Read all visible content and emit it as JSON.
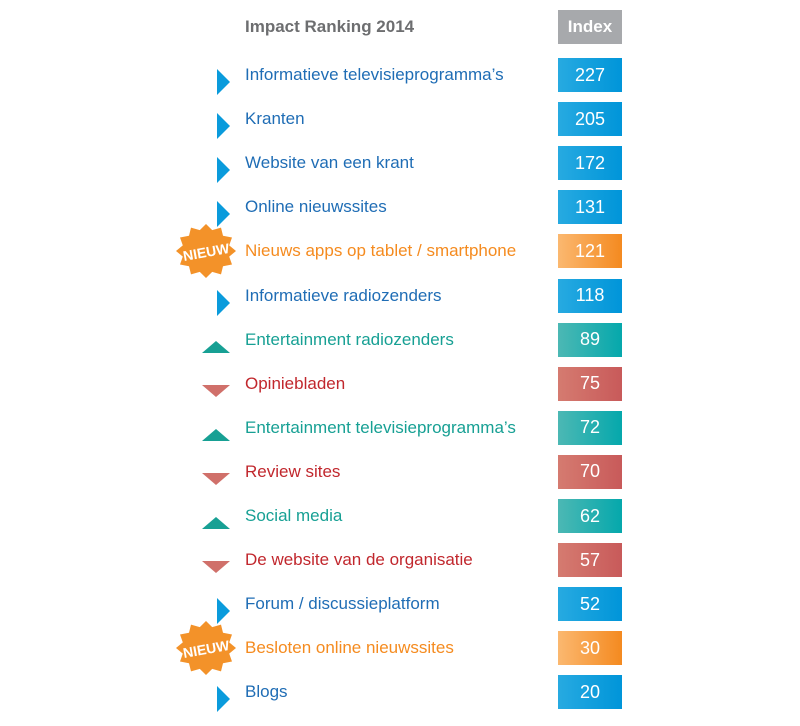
{
  "chart_data": {
    "type": "table",
    "title": "Impact Ranking 2014",
    "value_header": "Index",
    "badge_text": "NIEUW",
    "colors": {
      "info": "#0095d9",
      "new": "#f48a20",
      "up": "#05a8ac",
      "down": "#c85a5a"
    },
    "rows": [
      {
        "label": "Informatieve televisieprogramma’s",
        "value": 227,
        "status": "info"
      },
      {
        "label": "Kranten",
        "value": 205,
        "status": "info"
      },
      {
        "label": "Website van een krant",
        "value": 172,
        "status": "info"
      },
      {
        "label": "Online nieuwssites",
        "value": 131,
        "status": "info"
      },
      {
        "label": "Nieuws apps op tablet / smartphone",
        "value": 121,
        "status": "new"
      },
      {
        "label": "Informatieve radiozenders",
        "value": 118,
        "status": "info"
      },
      {
        "label": "Entertainment radiozenders",
        "value": 89,
        "status": "up"
      },
      {
        "label": "Opiniebladen",
        "value": 75,
        "status": "down"
      },
      {
        "label": "Entertainment televisieprogramma’s",
        "value": 72,
        "status": "up"
      },
      {
        "label": "Review sites",
        "value": 70,
        "status": "down"
      },
      {
        "label": "Social media",
        "value": 62,
        "status": "up"
      },
      {
        "label": "De website van de organisatie",
        "value": 57,
        "status": "down"
      },
      {
        "label": "Forum / discussieplatform",
        "value": 52,
        "status": "info"
      },
      {
        "label": "Besloten online nieuwssites",
        "value": 30,
        "status": "new"
      },
      {
        "label": "Blogs",
        "value": 20,
        "status": "info"
      }
    ]
  }
}
